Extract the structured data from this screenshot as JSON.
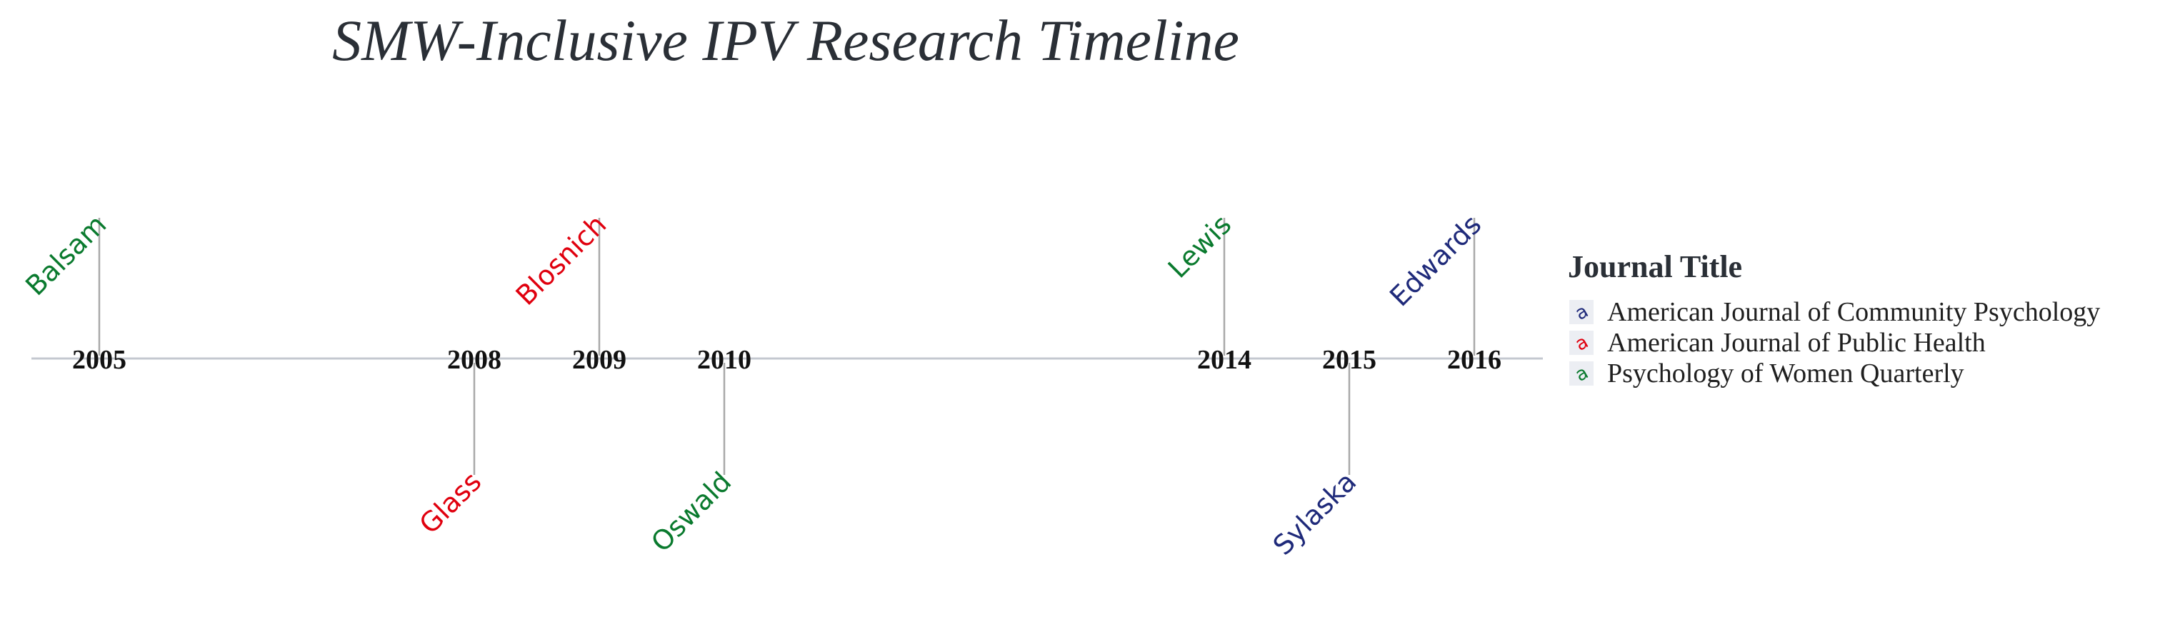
{
  "chart_data": {
    "type": "timeline",
    "title": "SMW-Inclusive IPV Research Timeline",
    "x_range": [
      2005,
      2016
    ],
    "ticks": [
      "2005",
      "2008",
      "2009",
      "2010",
      "2014",
      "2015",
      "2016"
    ],
    "events": [
      {
        "year": 2005,
        "author": "Balsam",
        "journal": "Psychology of Women Quarterly",
        "side": "above"
      },
      {
        "year": 2008,
        "author": "Glass",
        "journal": "American Journal of Public Health",
        "side": "below"
      },
      {
        "year": 2009,
        "author": "Blosnich",
        "journal": "American Journal of Public Health",
        "side": "above"
      },
      {
        "year": 2010,
        "author": "Oswald",
        "journal": "Psychology of Women Quarterly",
        "side": "below"
      },
      {
        "year": 2014,
        "author": "Lewis",
        "journal": "Psychology of Women Quarterly",
        "side": "above"
      },
      {
        "year": 2015,
        "author": "Sylaska",
        "journal": "American Journal of Community Psychology",
        "side": "below"
      },
      {
        "year": 2016,
        "author": "Edwards",
        "journal": "American Journal of Community Psychology",
        "side": "above"
      }
    ],
    "legend": {
      "title": "Journal Title",
      "position": "right",
      "entries": [
        {
          "name": "American Journal of Community Psychology",
          "color": "#1f2a7a"
        },
        {
          "name": "American Journal of Public Health",
          "color": "#e0000e"
        },
        {
          "name": "Psychology of Women Quarterly",
          "color": "#0a7a2e"
        }
      ]
    },
    "grid": false
  }
}
